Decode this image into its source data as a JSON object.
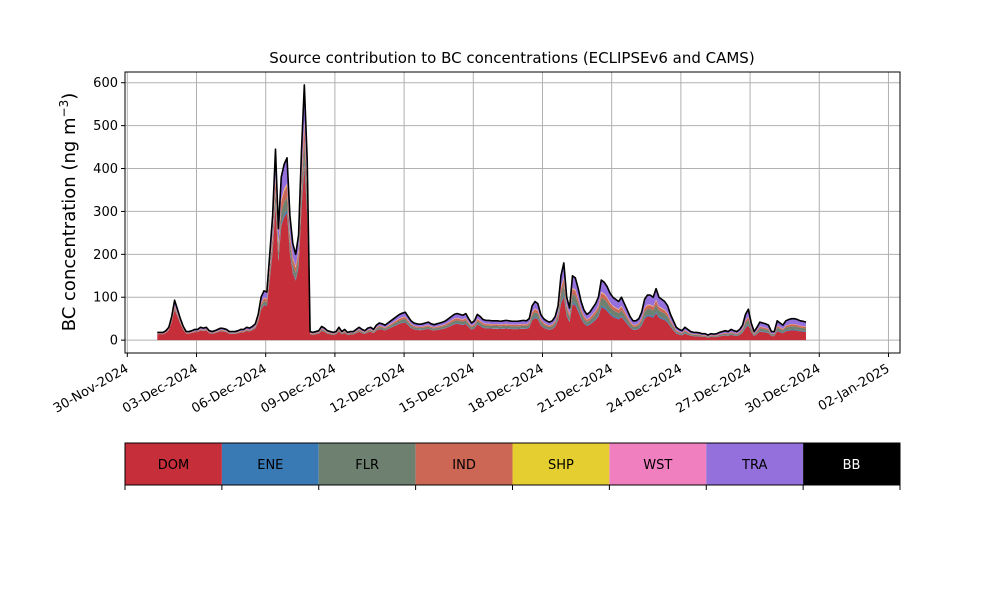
{
  "chart_data": {
    "type": "area",
    "stacked": true,
    "title": "Source contribution to BC concentrations (ECLIPSEv6 and CAMS)",
    "ylabel_main": "BC concentration (ng m",
    "ylabel_sup": "−3",
    "ylabel_close": ")",
    "xlabel": "",
    "ylim": [
      -30,
      625
    ],
    "yticks": [
      0,
      100,
      200,
      300,
      400,
      500,
      600
    ],
    "grid": true,
    "x_date_ticks": [
      {
        "day": -1,
        "label": "30-Nov-2024"
      },
      {
        "day": 2,
        "label": "03-Dec-2024"
      },
      {
        "day": 5,
        "label": "06-Dec-2024"
      },
      {
        "day": 8,
        "label": "09-Dec-2024"
      },
      {
        "day": 11,
        "label": "12-Dec-2024"
      },
      {
        "day": 14,
        "label": "15-Dec-2024"
      },
      {
        "day": 17,
        "label": "18-Dec-2024"
      },
      {
        "day": 20,
        "label": "21-Dec-2024"
      },
      {
        "day": 23,
        "label": "24-Dec-2024"
      },
      {
        "day": 26,
        "label": "27-Dec-2024"
      },
      {
        "day": 29,
        "label": "30-Dec-2024"
      },
      {
        "day": 32,
        "label": "02-Jan-2025"
      }
    ],
    "x_range_days": [
      -1.1,
      32.5
    ],
    "x_start_day": 0.3,
    "x_step_days": 0.125,
    "total": [
      18,
      18,
      18,
      22,
      30,
      55,
      93,
      72,
      50,
      32,
      20,
      20,
      22,
      25,
      25,
      30,
      28,
      30,
      22,
      20,
      22,
      25,
      28,
      27,
      25,
      20,
      20,
      20,
      22,
      25,
      25,
      30,
      28,
      32,
      38,
      60,
      100,
      115,
      112,
      200,
      290,
      445,
      260,
      380,
      410,
      425,
      290,
      225,
      200,
      245,
      440,
      595,
      420,
      20,
      18,
      20,
      22,
      32,
      28,
      22,
      20,
      18,
      20,
      30,
      20,
      25,
      18,
      20,
      20,
      25,
      30,
      25,
      22,
      28,
      30,
      25,
      35,
      40,
      38,
      35,
      40,
      45,
      50,
      55,
      60,
      63,
      65,
      55,
      45,
      40,
      38,
      37,
      38,
      40,
      42,
      38,
      36,
      38,
      40,
      42,
      45,
      50,
      55,
      60,
      62,
      60,
      58,
      62,
      50,
      40,
      45,
      60,
      55,
      48,
      46,
      46,
      45,
      45,
      45,
      44,
      45,
      46,
      45,
      44,
      44,
      44,
      45,
      46,
      45,
      50,
      80,
      90,
      85,
      60,
      50,
      45,
      42,
      45,
      55,
      80,
      150,
      180,
      100,
      75,
      150,
      145,
      120,
      90,
      70,
      60,
      65,
      75,
      85,
      100,
      140,
      135,
      125,
      110,
      100,
      95,
      90,
      100,
      85,
      70,
      55,
      45,
      45,
      50,
      65,
      95,
      105,
      105,
      100,
      120,
      100,
      95,
      90,
      80,
      60,
      45,
      30,
      25,
      22,
      30,
      25,
      20,
      18,
      18,
      17,
      15,
      15,
      12,
      15,
      14,
      15,
      18,
      20,
      22,
      20,
      25,
      22,
      20,
      25,
      35,
      60,
      72,
      40,
      20,
      30,
      42,
      40,
      38,
      35,
      20,
      20,
      45,
      40,
      35,
      45,
      48,
      50,
      50,
      48,
      45,
      44,
      42
    ],
    "series": [
      {
        "name": "DOM",
        "color": "#c62e39",
        "shares": [
          0.78,
          0.65,
          0.55,
          0.45
        ]
      },
      {
        "name": "ENE",
        "color": "#3a7ab4",
        "shares": [
          0.01,
          0.02,
          0.03,
          0.04
        ]
      },
      {
        "name": "FLR",
        "color": "#6e8070",
        "shares": [
          0.03,
          0.1,
          0.13,
          0.15
        ]
      },
      {
        "name": "IND",
        "color": "#cc6655",
        "shares": [
          0.05,
          0.07,
          0.08,
          0.09
        ]
      },
      {
        "name": "SHP",
        "color": "#e5cf30",
        "shares": [
          0.005,
          0.01,
          0.01,
          0.01
        ]
      },
      {
        "name": "WST",
        "color": "#f07fbf",
        "shares": [
          0.005,
          0.01,
          0.01,
          0.01
        ]
      },
      {
        "name": "TRA",
        "color": "#9370db",
        "shares": [
          0.12,
          0.135,
          0.18,
          0.24
        ]
      },
      {
        "name": "BB",
        "color": "#000000",
        "shares": [
          0.01,
          0.01,
          0.01,
          0.01
        ]
      }
    ],
    "legend": {
      "placement": "bottom",
      "items": [
        {
          "label": "DOM",
          "color": "#c62e39",
          "text_color": "#000000"
        },
        {
          "label": "ENE",
          "color": "#3a7ab4",
          "text_color": "#000000"
        },
        {
          "label": "FLR",
          "color": "#6e8070",
          "text_color": "#000000"
        },
        {
          "label": "IND",
          "color": "#cc6655",
          "text_color": "#000000"
        },
        {
          "label": "SHP",
          "color": "#e5cf30",
          "text_color": "#000000"
        },
        {
          "label": "WST",
          "color": "#f07fbf",
          "text_color": "#000000"
        },
        {
          "label": "TRA",
          "color": "#9370db",
          "text_color": "#000000"
        },
        {
          "label": "BB",
          "color": "#000000",
          "text_color": "#ffffff"
        }
      ]
    }
  }
}
